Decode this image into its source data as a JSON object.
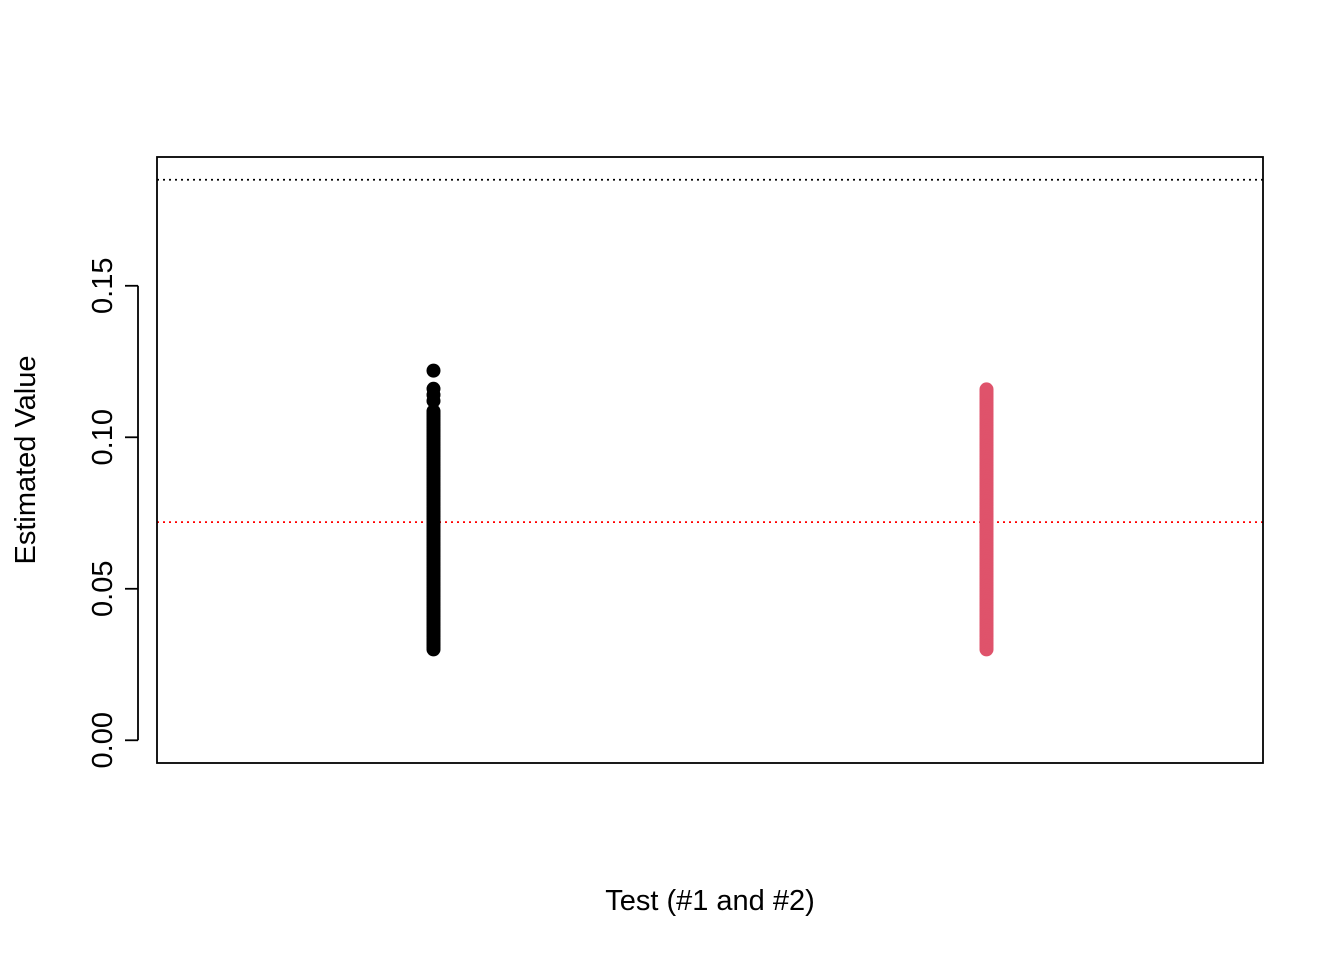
{
  "chart_data": {
    "type": "scatter",
    "title": "",
    "xlabel": "Test (#1 and #2)",
    "ylabel": "Estimated Value",
    "xlim": [
      0.5,
      2.5
    ],
    "ylim": [
      -0.0075,
      0.1925
    ],
    "y_ticks": [
      0.0,
      0.05,
      0.1,
      0.15
    ],
    "y_tick_labels": [
      "0.00",
      "0.05",
      "0.10",
      "0.15"
    ],
    "x_ticks_shown": false,
    "grid": false,
    "legend": "none",
    "series": [
      {
        "x": 1,
        "color": "#000000",
        "y_min": 0.03,
        "y_max": 0.109,
        "outliers": [
          0.112,
          0.114,
          0.116,
          0.122
        ]
      },
      {
        "x": 2,
        "color": "#DF536B",
        "y_min": 0.03,
        "y_max": 0.116,
        "outliers": []
      }
    ],
    "reference_lines": [
      {
        "y": 0.185,
        "color": "#000000",
        "style": "dotted"
      },
      {
        "y": 0.072,
        "color": "#FF0000",
        "style": "dotted"
      }
    ]
  }
}
